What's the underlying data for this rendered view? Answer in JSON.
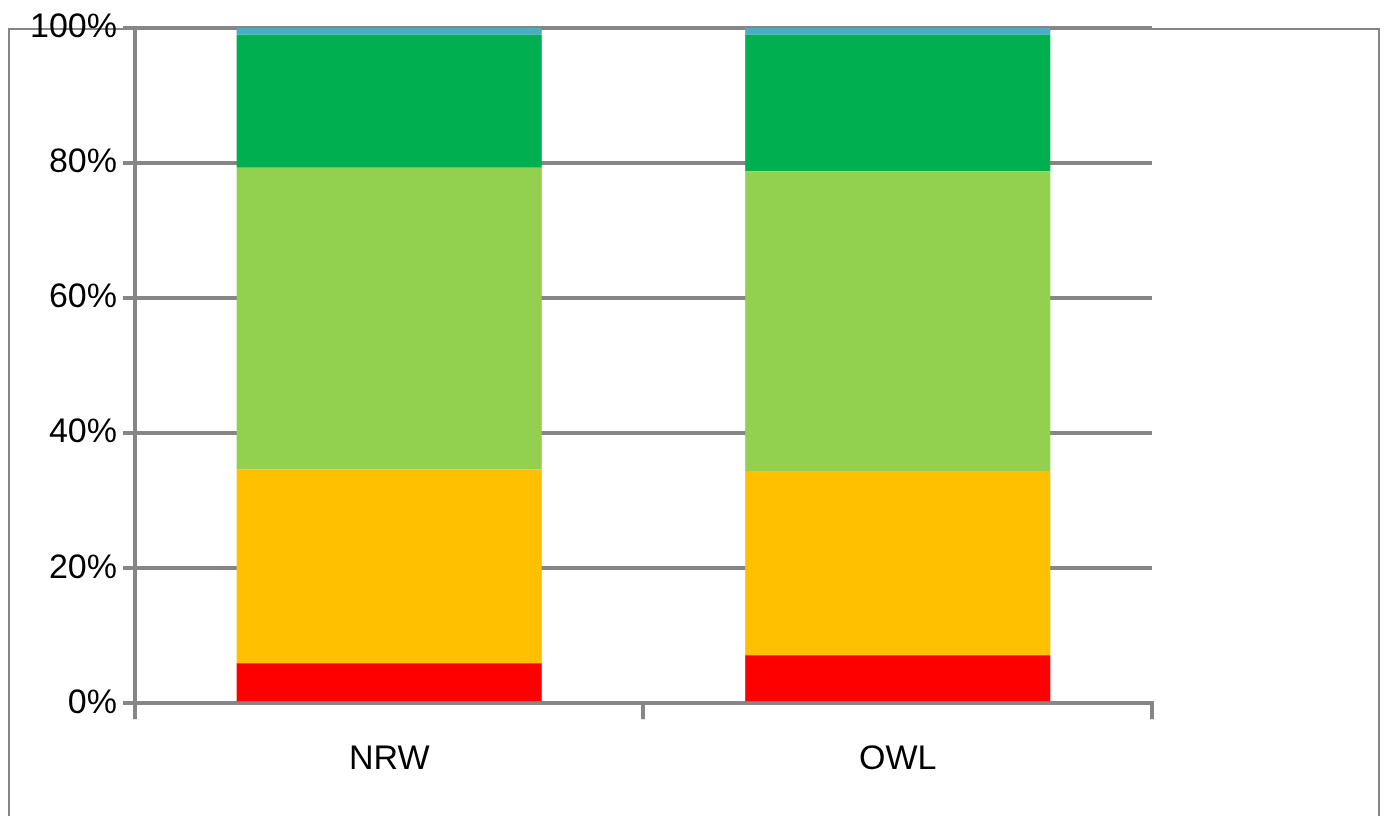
{
  "chart_data": {
    "type": "bar",
    "stacked": true,
    "categories": [
      "NRW",
      "OWL"
    ],
    "series": [
      {
        "color": "#ff0000",
        "values": [
          5.9,
          7.1
        ]
      },
      {
        "color": "#ffc000",
        "values": [
          28.7,
          27.3
        ]
      },
      {
        "color": "#92d050",
        "values": [
          44.7,
          44.4
        ]
      },
      {
        "color": "#00b050",
        "values": [
          19.7,
          20.2
        ]
      },
      {
        "color": "#4bacc6",
        "values": [
          1.0,
          1.0
        ]
      }
    ],
    "ylim": [
      0,
      100
    ],
    "yticks": [
      {
        "value": 0,
        "label": "0%"
      },
      {
        "value": 20,
        "label": "20%"
      },
      {
        "value": 40,
        "label": "40%"
      },
      {
        "value": 60,
        "label": "60%"
      },
      {
        "value": 80,
        "label": "80%"
      },
      {
        "value": 100,
        "label": "100%"
      }
    ],
    "grid": "y",
    "legend": false
  }
}
